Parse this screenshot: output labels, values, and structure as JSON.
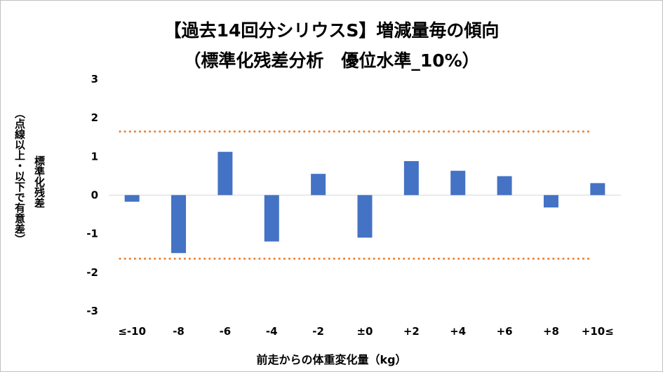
{
  "chart_data": {
    "type": "bar",
    "title_line1": "【過去14回分シリウスS】増減量毎の傾向",
    "title_line2": "（標準化残差分析　優位水準_10%）",
    "ylabel": "標準化残差",
    "ylabel_note": "（点線以上・以下で有意差）",
    "xlabel": "前走からの体重変化量（kg）",
    "categories": [
      "≤-10",
      "-8",
      "-6",
      "-4",
      "-2",
      "±0",
      "+2",
      "+4",
      "+6",
      "+8",
      "+10≤"
    ],
    "values": [
      -0.17,
      -1.5,
      1.12,
      -1.2,
      0.55,
      -1.1,
      0.88,
      0.63,
      0.49,
      -0.32,
      0.31
    ],
    "ylim": [
      -3,
      3
    ],
    "yticks": [
      "3",
      "2",
      "1",
      "0",
      "-1",
      "-2",
      "-3"
    ],
    "threshold_upper": 1.645,
    "threshold_lower": -1.645,
    "bar_color": "#4472c4",
    "threshold_color": "#ed7d31",
    "grid": false,
    "legend": "none"
  }
}
